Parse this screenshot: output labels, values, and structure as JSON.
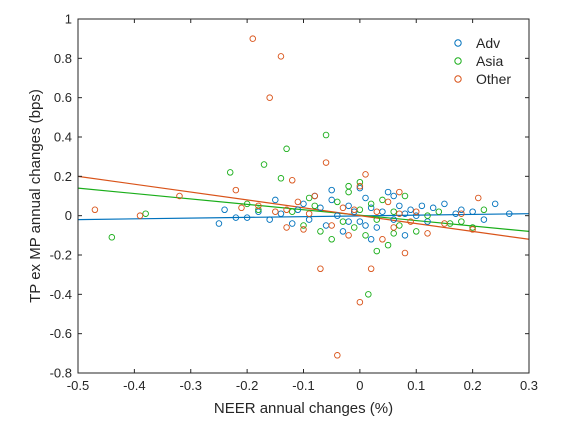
{
  "chart_data": {
    "type": "scatter",
    "title": "",
    "xlabel": "NEER annual changes (%)",
    "ylabel": "TP ex MP annual changes (bps)",
    "xlim": [
      -0.5,
      0.3
    ],
    "ylim": [
      -0.8,
      1.0
    ],
    "xticks": [
      -0.5,
      -0.4,
      -0.3,
      -0.2,
      -0.1,
      0,
      0.1,
      0.2,
      0.3
    ],
    "xtick_labels": [
      "-0.5",
      "-0.4",
      "-0.3",
      "-0.2",
      "-0.1",
      "0",
      "0.1",
      "0.2",
      "0.3"
    ],
    "yticks": [
      -0.8,
      -0.6,
      -0.4,
      -0.2,
      0,
      0.2,
      0.4,
      0.6,
      0.8,
      1
    ],
    "ytick_labels": [
      "-0.8",
      "-0.6",
      "-0.4",
      "-0.2",
      "0",
      "0.2",
      "0.4",
      "0.6",
      "0.8",
      "1"
    ],
    "grid": false,
    "legend": "top-right",
    "series": [
      {
        "name": "Adv",
        "color": "#0072BD",
        "marker": "open-circle",
        "points": [
          [
            -0.25,
            -0.04
          ],
          [
            -0.24,
            0.03
          ],
          [
            -0.22,
            -0.01
          ],
          [
            -0.2,
            -0.01
          ],
          [
            -0.18,
            0.02
          ],
          [
            -0.16,
            -0.02
          ],
          [
            -0.15,
            0.08
          ],
          [
            -0.14,
            0.01
          ],
          [
            -0.12,
            -0.04
          ],
          [
            -0.11,
            0.03
          ],
          [
            -0.1,
            0.06
          ],
          [
            -0.09,
            -0.02
          ],
          [
            -0.08,
            0.1
          ],
          [
            -0.07,
            0.04
          ],
          [
            -0.06,
            -0.05
          ],
          [
            -0.05,
            0.08
          ],
          [
            -0.04,
            0.0
          ],
          [
            -0.03,
            -0.08
          ],
          [
            -0.02,
            0.05
          ],
          [
            -0.01,
            0.02
          ],
          [
            0.0,
            -0.03
          ],
          [
            0.01,
            0.09
          ],
          [
            0.02,
            0.04
          ],
          [
            0.03,
            -0.06
          ],
          [
            0.04,
            0.02
          ],
          [
            0.05,
            0.12
          ],
          [
            0.06,
            -0.02
          ],
          [
            0.07,
            0.05
          ],
          [
            0.08,
            -0.1
          ],
          [
            0.09,
            0.03
          ],
          [
            0.1,
            0.0
          ],
          [
            0.11,
            0.05
          ],
          [
            0.12,
            -0.03
          ],
          [
            0.13,
            0.04
          ],
          [
            0.15,
            0.06
          ],
          [
            0.17,
            0.01
          ],
          [
            0.18,
            0.03
          ],
          [
            0.2,
            0.02
          ],
          [
            0.22,
            -0.02
          ],
          [
            0.24,
            0.06
          ],
          [
            0.265,
            0.01
          ],
          [
            0.0,
            0.14
          ],
          [
            0.02,
            -0.12
          ],
          [
            -0.05,
            0.13
          ],
          [
            0.06,
            0.1
          ],
          [
            0.08,
            0.01
          ],
          [
            -0.02,
            -0.03
          ],
          [
            0.01,
            -0.05
          ]
        ]
      },
      {
        "name": "Asia",
        "color": "#1AAE1A",
        "marker": "open-circle",
        "points": [
          [
            -0.44,
            -0.11
          ],
          [
            -0.38,
            0.01
          ],
          [
            -0.23,
            0.22
          ],
          [
            -0.2,
            0.06
          ],
          [
            -0.18,
            0.03
          ],
          [
            -0.17,
            0.26
          ],
          [
            -0.14,
            0.19
          ],
          [
            -0.13,
            0.34
          ],
          [
            -0.12,
            0.02
          ],
          [
            -0.1,
            -0.05
          ],
          [
            -0.08,
            0.05
          ],
          [
            -0.06,
            0.41
          ],
          [
            -0.05,
            -0.12
          ],
          [
            -0.04,
            0.07
          ],
          [
            -0.03,
            -0.03
          ],
          [
            -0.02,
            0.12
          ],
          [
            -0.01,
            -0.06
          ],
          [
            0.0,
            0.03
          ],
          [
            0.01,
            -0.1
          ],
          [
            0.015,
            -0.4
          ],
          [
            0.02,
            0.06
          ],
          [
            0.03,
            -0.02
          ],
          [
            0.04,
            0.08
          ],
          [
            0.05,
            -0.15
          ],
          [
            0.06,
            0.02
          ],
          [
            0.07,
            -0.05
          ],
          [
            0.08,
            0.1
          ],
          [
            0.1,
            -0.08
          ],
          [
            0.12,
            0.0
          ],
          [
            0.14,
            0.02
          ],
          [
            0.16,
            -0.04
          ],
          [
            0.18,
            -0.03
          ],
          [
            0.2,
            -0.06
          ],
          [
            0.22,
            0.03
          ],
          [
            -0.07,
            -0.08
          ],
          [
            -0.09,
            0.09
          ],
          [
            0.0,
            0.17
          ],
          [
            0.03,
            -0.18
          ],
          [
            0.06,
            -0.09
          ],
          [
            -0.02,
            0.15
          ]
        ]
      },
      {
        "name": "Other",
        "color": "#D95319",
        "marker": "open-circle",
        "points": [
          [
            -0.47,
            0.03
          ],
          [
            -0.39,
            0.0
          ],
          [
            -0.32,
            0.1
          ],
          [
            -0.22,
            0.13
          ],
          [
            -0.21,
            0.04
          ],
          [
            -0.19,
            0.9
          ],
          [
            -0.18,
            0.05
          ],
          [
            -0.16,
            0.6
          ],
          [
            -0.15,
            0.02
          ],
          [
            -0.14,
            0.81
          ],
          [
            -0.13,
            0.03
          ],
          [
            -0.12,
            0.18
          ],
          [
            -0.11,
            0.07
          ],
          [
            -0.1,
            -0.07
          ],
          [
            -0.09,
            0.01
          ],
          [
            -0.08,
            0.1
          ],
          [
            -0.07,
            -0.27
          ],
          [
            -0.06,
            0.27
          ],
          [
            -0.05,
            -0.05
          ],
          [
            -0.04,
            -0.71
          ],
          [
            -0.03,
            0.04
          ],
          [
            -0.02,
            -0.1
          ],
          [
            -0.01,
            0.03
          ],
          [
            0.0,
            -0.44
          ],
          [
            0.01,
            0.21
          ],
          [
            0.02,
            -0.27
          ],
          [
            0.03,
            0.02
          ],
          [
            0.04,
            -0.12
          ],
          [
            0.05,
            0.07
          ],
          [
            0.06,
            -0.06
          ],
          [
            0.07,
            0.01
          ],
          [
            0.08,
            -0.19
          ],
          [
            0.09,
            -0.03
          ],
          [
            0.1,
            0.02
          ],
          [
            0.12,
            -0.09
          ],
          [
            0.15,
            -0.04
          ],
          [
            0.18,
            0.01
          ],
          [
            0.2,
            -0.07
          ],
          [
            0.21,
            0.09
          ],
          [
            -0.13,
            -0.06
          ],
          [
            0.0,
            0.15
          ],
          [
            0.07,
            0.12
          ]
        ]
      }
    ],
    "fit_lines": [
      {
        "series": "Adv",
        "color": "#0072BD",
        "x": [
          -0.5,
          0.3
        ],
        "y": [
          -0.02,
          0.01
        ]
      },
      {
        "series": "Asia",
        "color": "#1AAE1A",
        "x": [
          -0.5,
          0.3
        ],
        "y": [
          0.14,
          -0.08
        ]
      },
      {
        "series": "Other",
        "color": "#D95319",
        "x": [
          -0.5,
          0.3
        ],
        "y": [
          0.2,
          -0.12
        ]
      }
    ]
  }
}
